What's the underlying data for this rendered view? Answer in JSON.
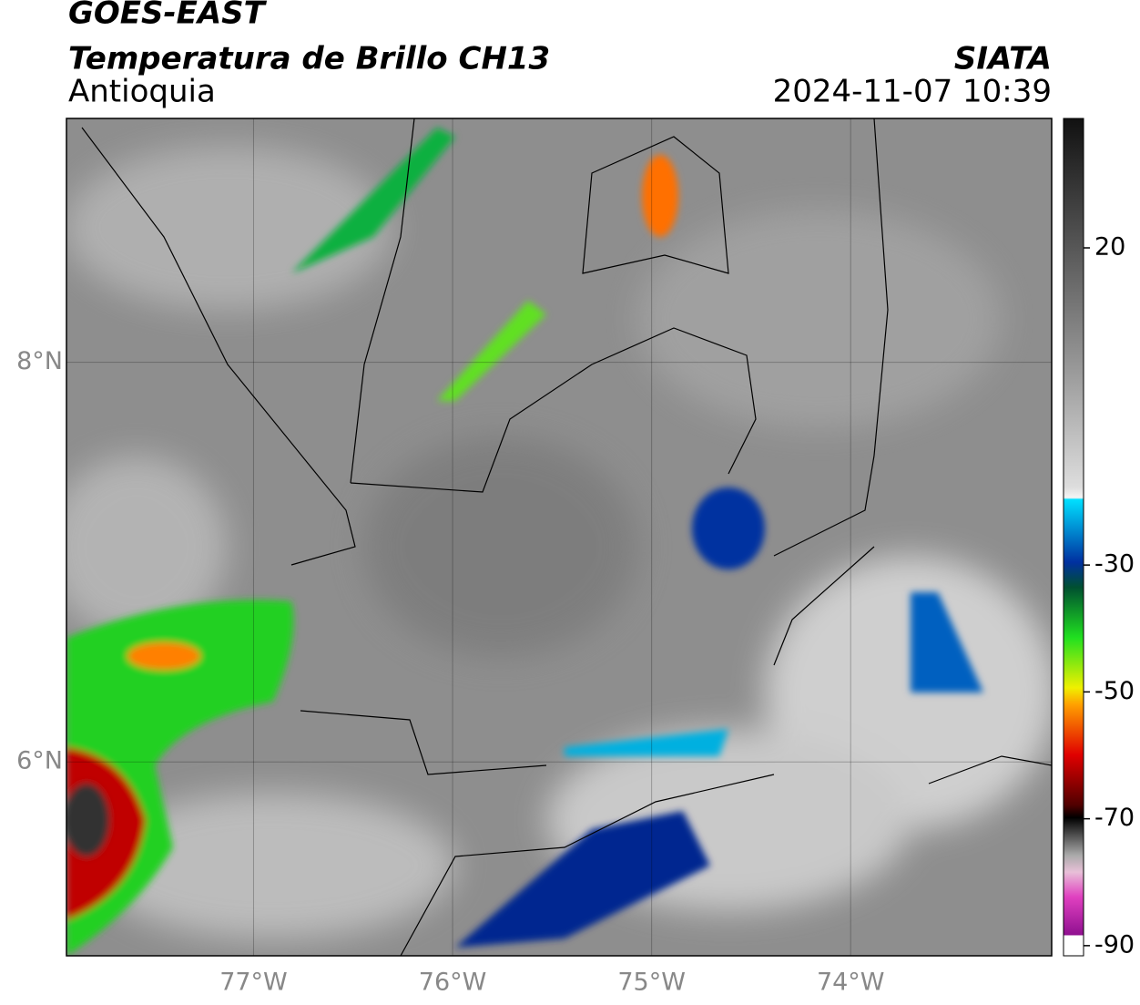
{
  "header": {
    "title": "GOES-EAST",
    "subtitle": "Temperatura de Brillo CH13",
    "source": "SIATA",
    "region": "Antioquia",
    "timestamp": "2024-11-07 10:39"
  },
  "map": {
    "xlim": [
      -77.94,
      -72.99
    ],
    "ylim": [
      5.03,
      9.22
    ],
    "xticks": [
      {
        "value": -77,
        "label": "77°W"
      },
      {
        "value": -76,
        "label": "76°W"
      },
      {
        "value": -75,
        "label": "75°W"
      },
      {
        "value": -74,
        "label": "74°W"
      }
    ],
    "yticks": [
      {
        "value": 6,
        "label": "6°N"
      },
      {
        "value": 8,
        "label": "8°N"
      }
    ]
  },
  "colorbar": {
    "lim": [
      -91.6,
      40.4
    ],
    "ticks": [
      20,
      -30,
      -50,
      -70,
      -90
    ]
  }
}
